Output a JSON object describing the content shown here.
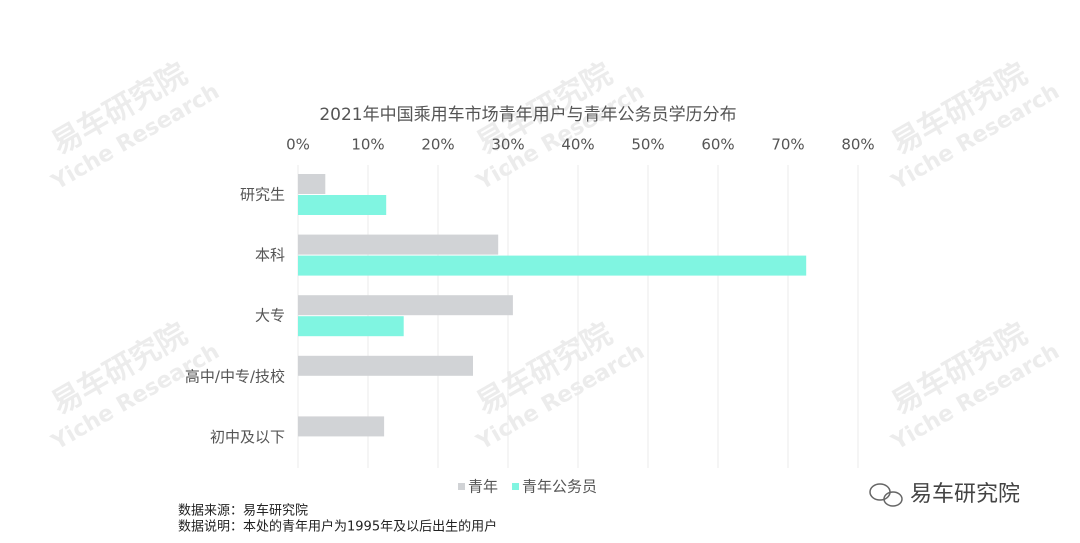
{
  "chart_data": {
    "type": "hbar",
    "title": "2021年中国乘用车市场青年用户与青年公务员学历分布",
    "categories": [
      "研究生",
      "本科",
      "大专",
      "高中/中专/技校",
      "初中及以下"
    ],
    "series": [
      {
        "name": "青年",
        "color": "#d1d3d6",
        "values": [
          3.9,
          28.6,
          30.7,
          25,
          12.3
        ]
      },
      {
        "name": "青年公务员",
        "color": "#80f5e1",
        "values": [
          12.6,
          72.6,
          15.1,
          null,
          null
        ]
      }
    ],
    "xlim": [
      0,
      80
    ],
    "xticks": [
      {
        "value": 0,
        "label": "0%"
      },
      {
        "value": 10,
        "label": "10%"
      },
      {
        "value": 20,
        "label": "20%"
      },
      {
        "value": 30,
        "label": "30%"
      },
      {
        "value": 40,
        "label": "40%"
      },
      {
        "value": 50,
        "label": "50%"
      },
      {
        "value": 60,
        "label": "60%"
      },
      {
        "value": 70,
        "label": "70%"
      },
      {
        "value": 80,
        "label": "80%"
      }
    ],
    "grid": true,
    "source": "数据来源：易车研究院",
    "note": "数据说明：本处的青年用户为1995年及以后出生的用户",
    "logo": "易车研究院",
    "watermark": {
      "name": "易车研究院",
      "sub": "Yiche Research"
    }
  }
}
